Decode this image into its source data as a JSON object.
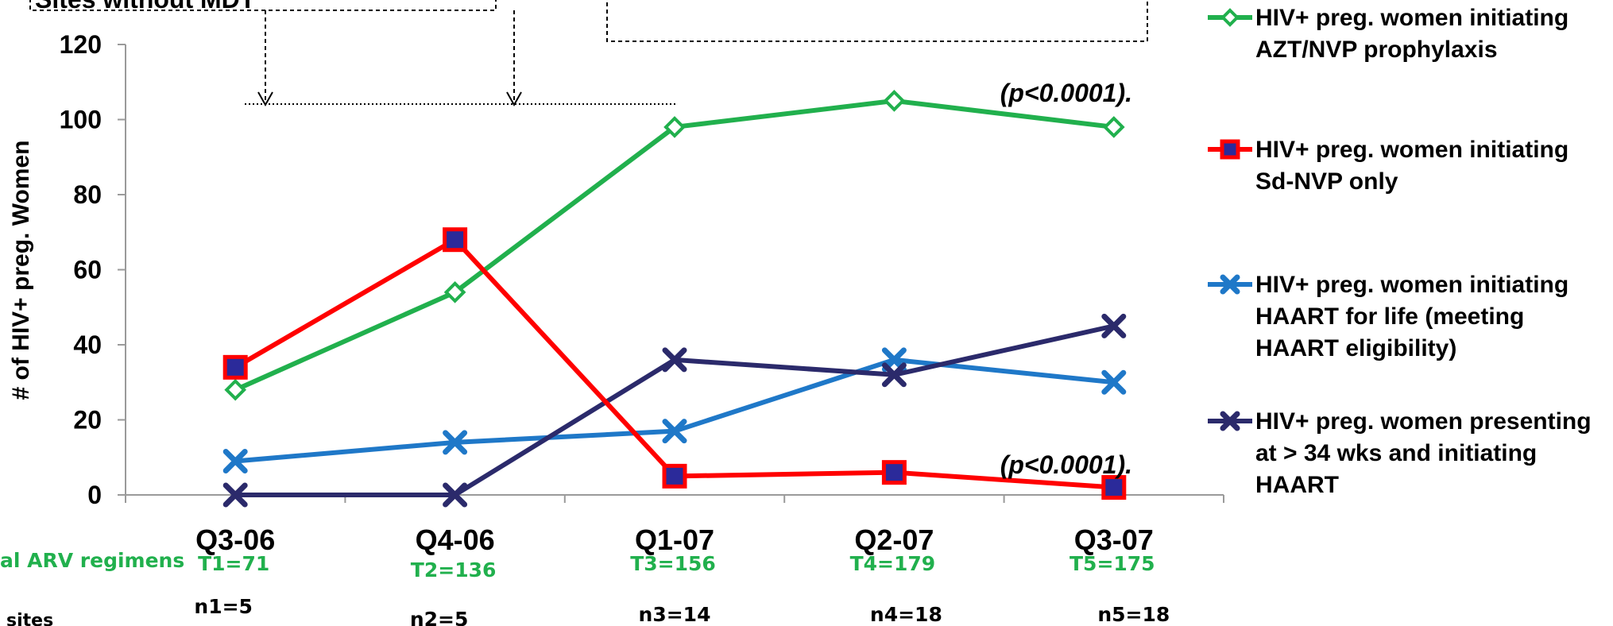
{
  "chart_data": {
    "type": "line",
    "categories": [
      "Q3-06",
      "Q4-06",
      "Q1-07",
      "Q2-07",
      "Q3-07"
    ],
    "ylabel": "# of HIV+ preg. Women",
    "ylim": [
      0,
      120
    ],
    "yticks": [
      0,
      20,
      40,
      60,
      80,
      100,
      120
    ],
    "grid": false,
    "legend_position": "right",
    "series": [
      {
        "name": [
          "HIV+ preg. women initiating",
          "AZT/NVP prophylaxis"
        ],
        "values": [
          28,
          54,
          98,
          105,
          98
        ],
        "color": "#21b04d",
        "marker": "diamond"
      },
      {
        "name": [
          "HIV+ preg. women initiating",
          "Sd-NVP only"
        ],
        "values": [
          34,
          68,
          5,
          6,
          2
        ],
        "color": "#ff0000",
        "marker": "square"
      },
      {
        "name": [
          "HIV+ preg. women initiating",
          "HAART for life (meeting",
          "HAART eligibility)"
        ],
        "values": [
          9,
          14,
          17,
          36,
          30
        ],
        "color": "#1f78c8",
        "marker": "x"
      },
      {
        "name": [
          "HIV+ preg. women presenting",
          "at > 34 wks and initiating",
          "HAART"
        ],
        "values": [
          0,
          0,
          36,
          32,
          45
        ],
        "color": "#2b2a6b",
        "marker": "x"
      }
    ],
    "annotations": {
      "p_value_top": "(p<0.0001).",
      "p_value_bottom": "(p<0.0001).",
      "box_left_text": "Sites without MDT"
    },
    "totals_row_label": "al ARV regimens",
    "totals": [
      "T1=71",
      "T2=136",
      "T3=156",
      "T4=179",
      "T5=175"
    ],
    "sites_row_label": "sites",
    "sites": [
      "n1=5",
      "n2=5",
      "n3=14",
      "n4=18",
      "n5=18"
    ]
  }
}
